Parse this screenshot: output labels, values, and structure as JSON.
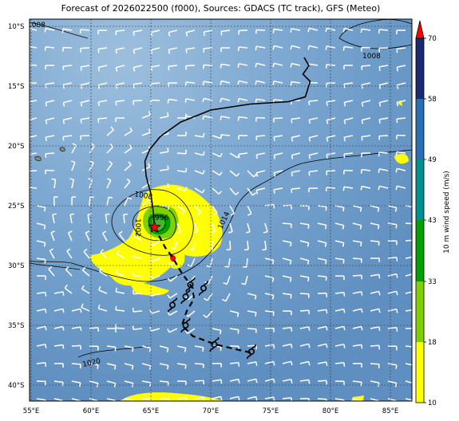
{
  "title": "Forecast of 2026022500 (f000), Sources: GDACS (TC track), GFS (Meteo)",
  "lat_ticks": [
    "10°S",
    "15°S",
    "20°S",
    "25°S",
    "30°S",
    "35°S",
    "40°S"
  ],
  "lon_ticks": [
    "55°E",
    "60°E",
    "65°E",
    "70°E",
    "75°E",
    "80°E",
    "85°E"
  ],
  "colorbar": {
    "label": "10 m wind speed (m/s)",
    "ticks": [
      "10",
      "18",
      "33",
      "43",
      "49",
      "58",
      "70"
    ],
    "colors": [
      "#ffff00",
      "#7fd000",
      "#00a000",
      "#008f8f",
      "#2a6fb5",
      "#1a2a70",
      "#ff0000"
    ]
  },
  "isobars": [
    "1008",
    "1008",
    "1008",
    "1002",
    "1014",
    "1020",
    "996"
  ],
  "colors": {
    "ocean": "#6c9cc8",
    "track": "#000000",
    "wind_barb": "#ffffff",
    "cyclone_marker": "#ff0000"
  },
  "track_past": [
    [
      77.8,
      12.6
    ],
    [
      78.2,
      13.3
    ],
    [
      77.7,
      14.0
    ],
    [
      78.3,
      14.6
    ],
    [
      77.9,
      15.9
    ],
    [
      76.5,
      16.3
    ],
    [
      73.3,
      16.5
    ],
    [
      70.0,
      17.0
    ],
    [
      67.5,
      18.0
    ],
    [
      65.8,
      19.2
    ],
    [
      64.9,
      20.3
    ],
    [
      64.5,
      21.3
    ],
    [
      64.6,
      22.5
    ],
    [
      65.0,
      24.0
    ],
    [
      65.2,
      25.5
    ],
    [
      65.3,
      26.8
    ]
  ],
  "track_forecast": [
    [
      65.3,
      26.8
    ],
    [
      66.2,
      28.5
    ],
    [
      66.8,
      29.3
    ],
    [
      67.5,
      30.5
    ],
    [
      68.5,
      31.9
    ],
    [
      68.6,
      32.8
    ],
    [
      68.0,
      33.8
    ],
    [
      67.6,
      35.0
    ],
    [
      68.5,
      35.9
    ],
    [
      70.4,
      36.6
    ],
    [
      73.4,
      37.3
    ]
  ],
  "forecast_symbols": [
    [
      68.3,
      31.6
    ],
    [
      69.4,
      31.9
    ],
    [
      67.9,
      32.6
    ],
    [
      66.8,
      33.3
    ],
    [
      67.9,
      35.0
    ],
    [
      70.3,
      36.6
    ],
    [
      73.4,
      37.2
    ]
  ]
}
